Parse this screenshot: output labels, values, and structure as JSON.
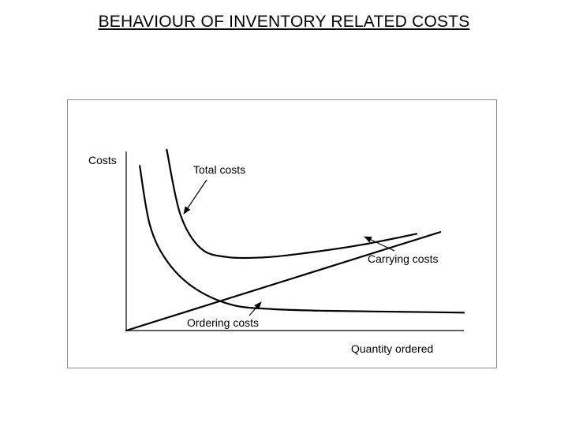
{
  "page": {
    "title": "BEHAVIOUR OF INVENTORY RELATED COSTS"
  },
  "chart_data": {
    "type": "line",
    "title": "BEHAVIOUR OF INVENTORY RELATED COSTS",
    "ylabel": "Costs",
    "xlabel": "Quantity ordered",
    "xlim": [
      0,
      10
    ],
    "ylim": [
      0,
      10
    ],
    "grid": false,
    "legend": "none",
    "axis_ticks": false,
    "series": [
      {
        "name": "Total costs",
        "x": [
          1.2,
          1.6,
          2.2,
          3.0,
          4.2,
          5.6,
          7.0,
          8.6
        ],
        "y": [
          10.1,
          6.5,
          4.6,
          4.1,
          4.1,
          4.4,
          4.8,
          5.4
        ]
      },
      {
        "name": "Carrying costs",
        "x": [
          0,
          9.3
        ],
        "y": [
          0,
          5.5
        ]
      },
      {
        "name": "Ordering costs",
        "x": [
          0.4,
          0.7,
          1.2,
          2.0,
          3.1,
          4.3,
          6.0,
          8.0,
          10.0
        ],
        "y": [
          9.2,
          5.9,
          3.9,
          2.4,
          1.45,
          1.2,
          1.1,
          1.05,
          1.0
        ]
      }
    ]
  }
}
